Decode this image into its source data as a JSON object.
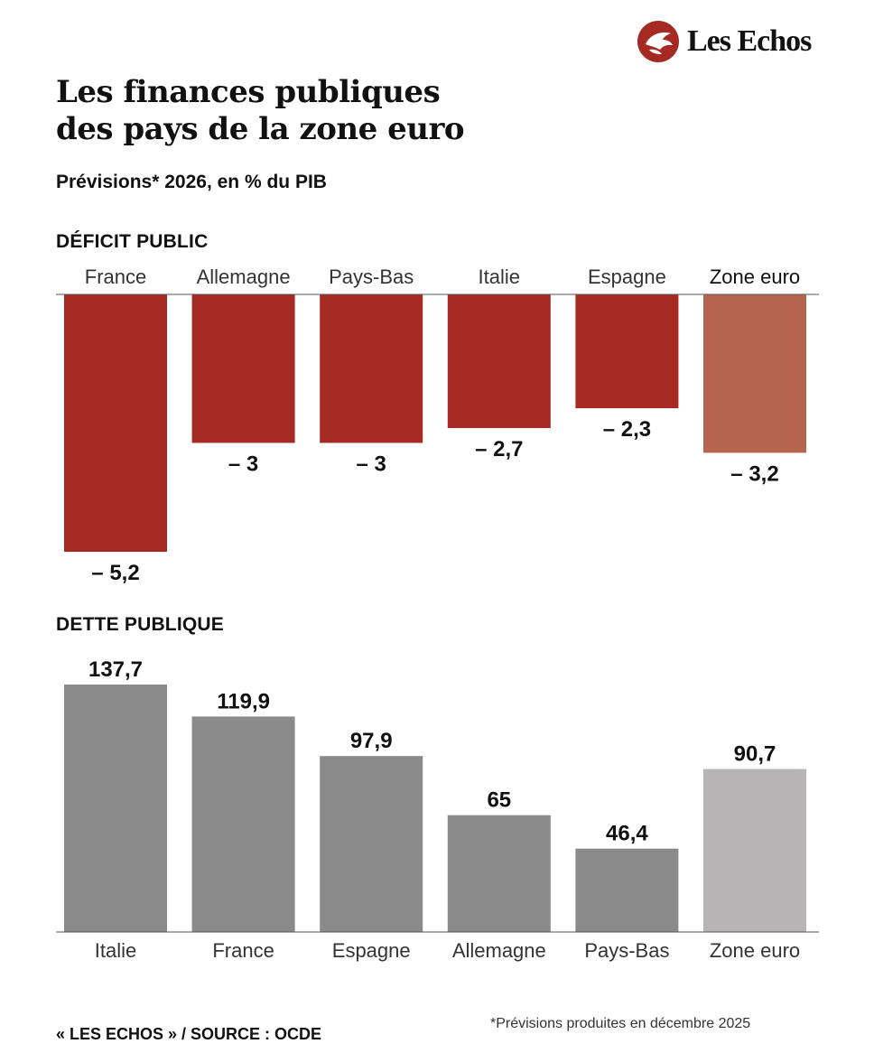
{
  "brand": {
    "name": "Les Echos",
    "colors": {
      "red": "#a52a24",
      "light_red": "#b5654d",
      "gray": "#8a8a8a",
      "light_gray": "#b6b4b4"
    }
  },
  "title_lines": [
    "Les finances publiques",
    "des pays de la zone euro"
  ],
  "subtitle": "Prévisions* 2026, en % du PIB",
  "footer": {
    "source": "« LES ECHOS » / SOURCE : OCDE",
    "note": "*Prévisions produites en décembre 2025"
  },
  "chart_data": [
    {
      "type": "bar",
      "title": "DÉFICIT PUBLIC",
      "categories": [
        "France",
        "Allemagne",
        "Pays-Bas",
        "Italie",
        "Espagne",
        "Zone euro"
      ],
      "values": [
        -5.2,
        -3,
        -3,
        -2.7,
        -2.3,
        -3.2
      ],
      "labels": [
        "– 5,2",
        "– 3",
        "– 3",
        "– 2,7",
        "– 2,3",
        "– 3,2"
      ],
      "highlight": "Zone euro",
      "ylim": [
        -5.2,
        0
      ],
      "xlabel": "",
      "ylabel": "",
      "grid": false
    },
    {
      "type": "bar",
      "title": "DETTE PUBLIQUE",
      "categories": [
        "Italie",
        "France",
        "Espagne",
        "Allemagne",
        "Pays-Bas",
        "Zone euro"
      ],
      "values": [
        137.7,
        119.9,
        97.9,
        65,
        46.4,
        90.7
      ],
      "labels": [
        "137,7",
        "119,9",
        "97,9",
        "65",
        "46,4",
        "90,7"
      ],
      "highlight": "Zone euro",
      "ylim": [
        0,
        137.7
      ],
      "xlabel": "",
      "ylabel": "",
      "grid": false
    }
  ]
}
